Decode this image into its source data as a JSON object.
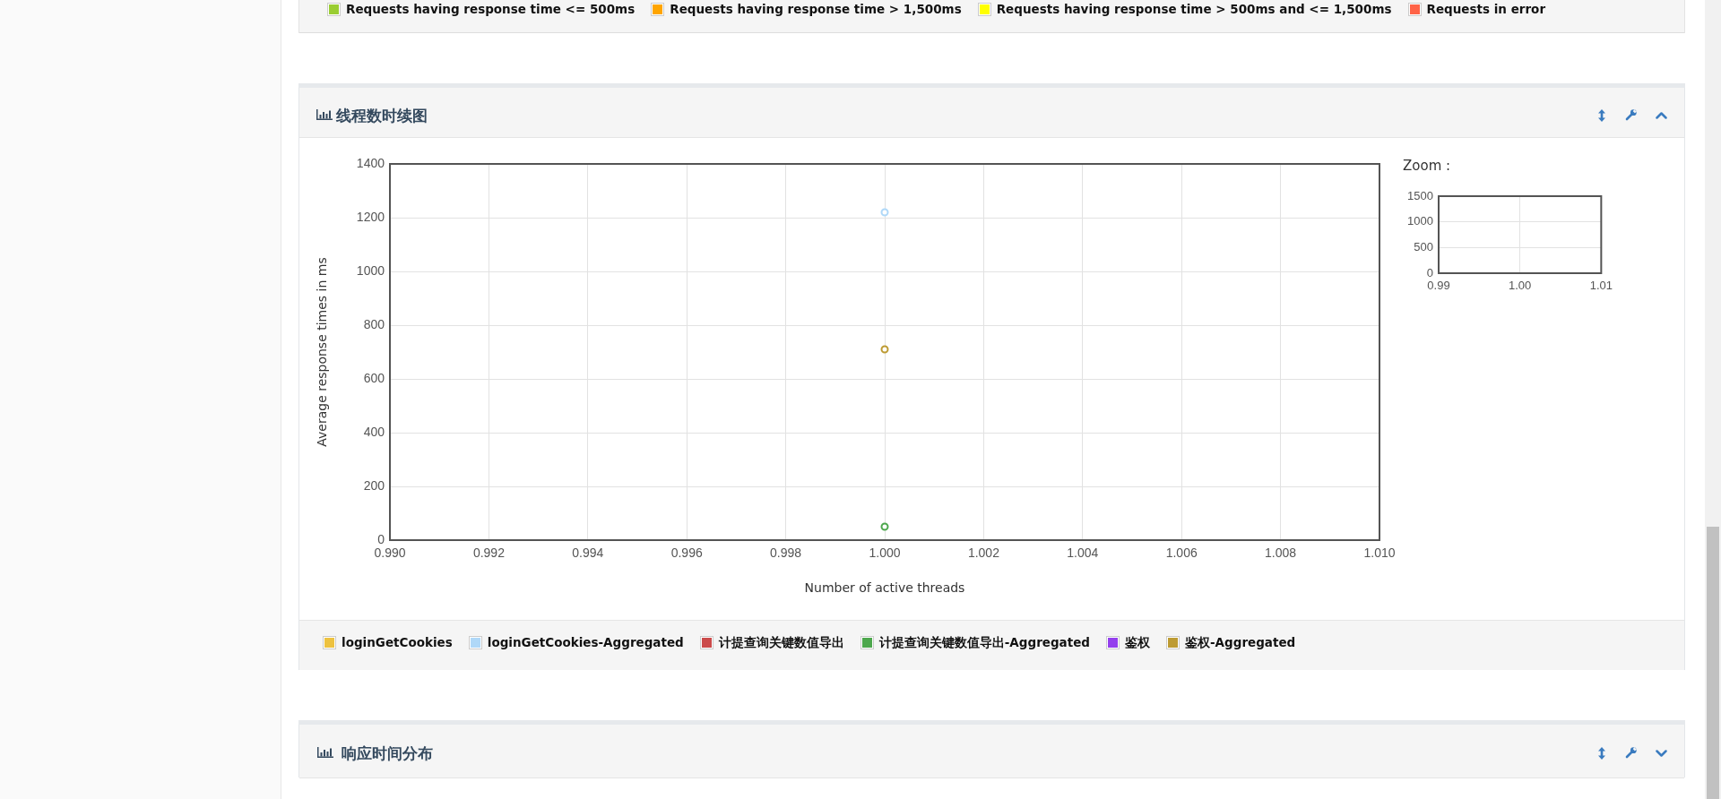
{
  "chart_data": [
    {
      "type": "other",
      "legend": "bottom",
      "series": [
        {
          "name": "Requests having response time <= 500ms",
          "color": "#9acd32"
        },
        {
          "name": "Requests having response time > 1,500ms",
          "color": "#ffa500"
        },
        {
          "name": "Requests having response time > 500ms and <= 1,500ms",
          "color": "#ffff00"
        },
        {
          "name": "Requests in error",
          "color": "#ff6347"
        }
      ]
    },
    {
      "type": "scatter",
      "title": "线程数时续图",
      "xlabel": "Number of active threads",
      "ylabel": "Average response times in ms",
      "x": [
        1
      ],
      "series": [
        {
          "name": "loginGetCookies",
          "color": "#edc240",
          "values": [
            null
          ]
        },
        {
          "name": "loginGetCookies-Aggregated",
          "color": "#afd8f8",
          "values": [
            1220
          ]
        },
        {
          "name": "计提查询关键数值导出",
          "color": "#cb4b4b",
          "values": [
            null
          ]
        },
        {
          "name": "计提查询关键数值导出-Aggregated",
          "color": "#4da74d",
          "values": [
            50
          ]
        },
        {
          "name": "鉴权",
          "color": "#9440ed",
          "values": [
            null
          ]
        },
        {
          "name": "鉴权-Aggregated",
          "color": "#bd9b33",
          "values": [
            710
          ]
        }
      ],
      "xlim": [
        0.99,
        1.01
      ],
      "xticks": [
        {
          "value": 0.99,
          "label": "0.990"
        },
        0.992,
        0.994,
        0.996,
        0.998,
        {
          "value": 1,
          "label": "1.000"
        },
        1.002,
        1.004,
        1.006,
        1.008,
        {
          "value": 1.01,
          "label": "1.010"
        }
      ],
      "ylim": [
        0,
        1400
      ],
      "yticks": [
        0,
        200,
        400,
        600,
        800,
        1000,
        1200,
        1400
      ],
      "grid": true,
      "legend": "bottom",
      "marker": "circle"
    },
    {
      "type": "scatter",
      "title": "Zoom :",
      "xlim": [
        0.99,
        1.01
      ],
      "xticks": [
        0.99,
        {
          "value": 1,
          "label": "1.00"
        },
        1.01
      ],
      "ylim": [
        0,
        1500
      ],
      "yticks": [
        0,
        500,
        1000,
        1500
      ],
      "grid": true
    },
    {
      "type": "other",
      "title": "响应时间分布"
    }
  ]
}
